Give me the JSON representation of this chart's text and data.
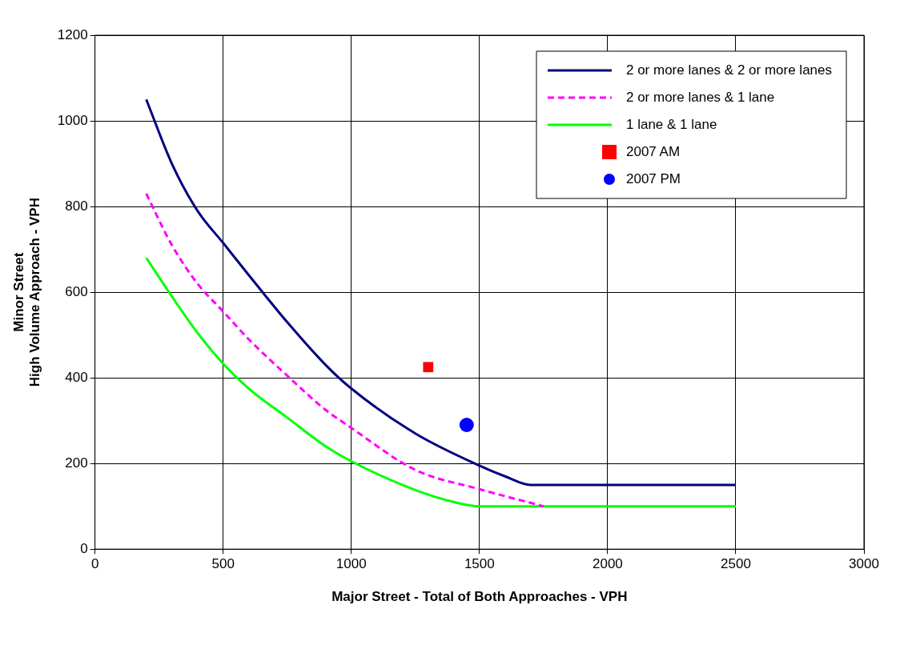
{
  "chart_data": {
    "type": "line",
    "xlabel": "Major Street - Total of Both Approaches - VPH",
    "ylabel": "Minor Street\nHigh Volume Approach - VPH",
    "xlim": [
      0,
      3000
    ],
    "xticks": [
      0,
      500,
      1000,
      1500,
      2000,
      2500,
      3000
    ],
    "ylim": [
      0,
      1200
    ],
    "yticks": [
      0,
      200,
      400,
      600,
      800,
      1000,
      1200
    ],
    "grid": true,
    "legend": "top right",
    "series": [
      {
        "name": "2 or more lanes & 2 or more lanes",
        "type": "line",
        "color": "#000080",
        "marker": "none",
        "line_style": "solid",
        "x": [
          200,
          300,
          400,
          500,
          600,
          750,
          900,
          1000,
          1250,
          1500,
          1600,
          1700,
          2500
        ],
        "values": [
          1050,
          900,
          790,
          715,
          640,
          530,
          430,
          375,
          270,
          195,
          170,
          150,
          150
        ]
      },
      {
        "name": "2 or more lanes & 1 lane",
        "type": "line",
        "color": "#ff00ff",
        "marker": "none",
        "line_style": "dashed",
        "x": [
          200,
          300,
          400,
          500,
          600,
          750,
          900,
          1000,
          1250,
          1500,
          1750
        ],
        "values": [
          830,
          710,
          620,
          555,
          490,
          405,
          325,
          283,
          185,
          140,
          100
        ]
      },
      {
        "name": "1 lane & 1 lane",
        "type": "line",
        "color": "#00ff00",
        "marker": "none",
        "line_style": "solid",
        "x": [
          200,
          300,
          400,
          500,
          600,
          750,
          900,
          1000,
          1250,
          1400,
          1500,
          2500
        ],
        "values": [
          680,
          590,
          505,
          433,
          375,
          307,
          240,
          205,
          138,
          110,
          100,
          100
        ]
      },
      {
        "name": "2007 AM",
        "type": "scatter",
        "color": "#ff0000",
        "marker": "square",
        "x": [
          1300
        ],
        "values": [
          425
        ]
      },
      {
        "name": "2007 PM",
        "type": "scatter",
        "color": "#0000ff",
        "marker": "circle",
        "x": [
          1450
        ],
        "values": [
          290
        ]
      }
    ]
  }
}
